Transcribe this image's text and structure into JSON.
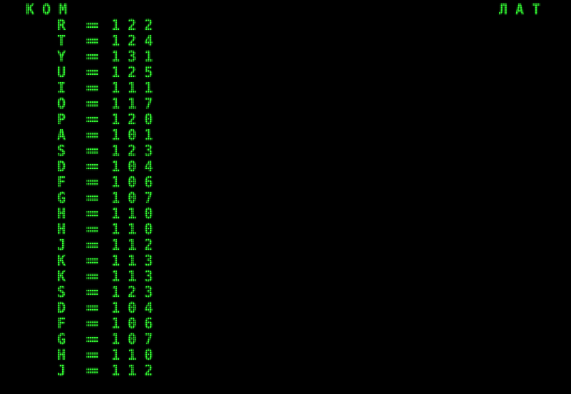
{
  "terminal": {
    "left_indicator": "КОМ",
    "right_indicator": "ЛАТ",
    "equals": "=",
    "colors": {
      "background": "#000000",
      "phosphor": "#33ff33"
    },
    "lines": [
      {
        "key": "R",
        "value": "122"
      },
      {
        "key": "T",
        "value": "124"
      },
      {
        "key": "Y",
        "value": "131"
      },
      {
        "key": "U",
        "value": "125"
      },
      {
        "key": "I",
        "value": "111"
      },
      {
        "key": "O",
        "value": "117"
      },
      {
        "key": "P",
        "value": "120"
      },
      {
        "key": "A",
        "value": "101"
      },
      {
        "key": "S",
        "value": "123"
      },
      {
        "key": "D",
        "value": "104"
      },
      {
        "key": "F",
        "value": "106"
      },
      {
        "key": "G",
        "value": "107"
      },
      {
        "key": "H",
        "value": "110"
      },
      {
        "key": "H",
        "value": "110"
      },
      {
        "key": "J",
        "value": "112"
      },
      {
        "key": "K",
        "value": "113"
      },
      {
        "key": "K",
        "value": "113"
      },
      {
        "key": "S",
        "value": "123"
      },
      {
        "key": "D",
        "value": "104"
      },
      {
        "key": "F",
        "value": "106"
      },
      {
        "key": "G",
        "value": "107"
      },
      {
        "key": "H",
        "value": "110"
      },
      {
        "key": "J",
        "value": "112"
      }
    ]
  }
}
